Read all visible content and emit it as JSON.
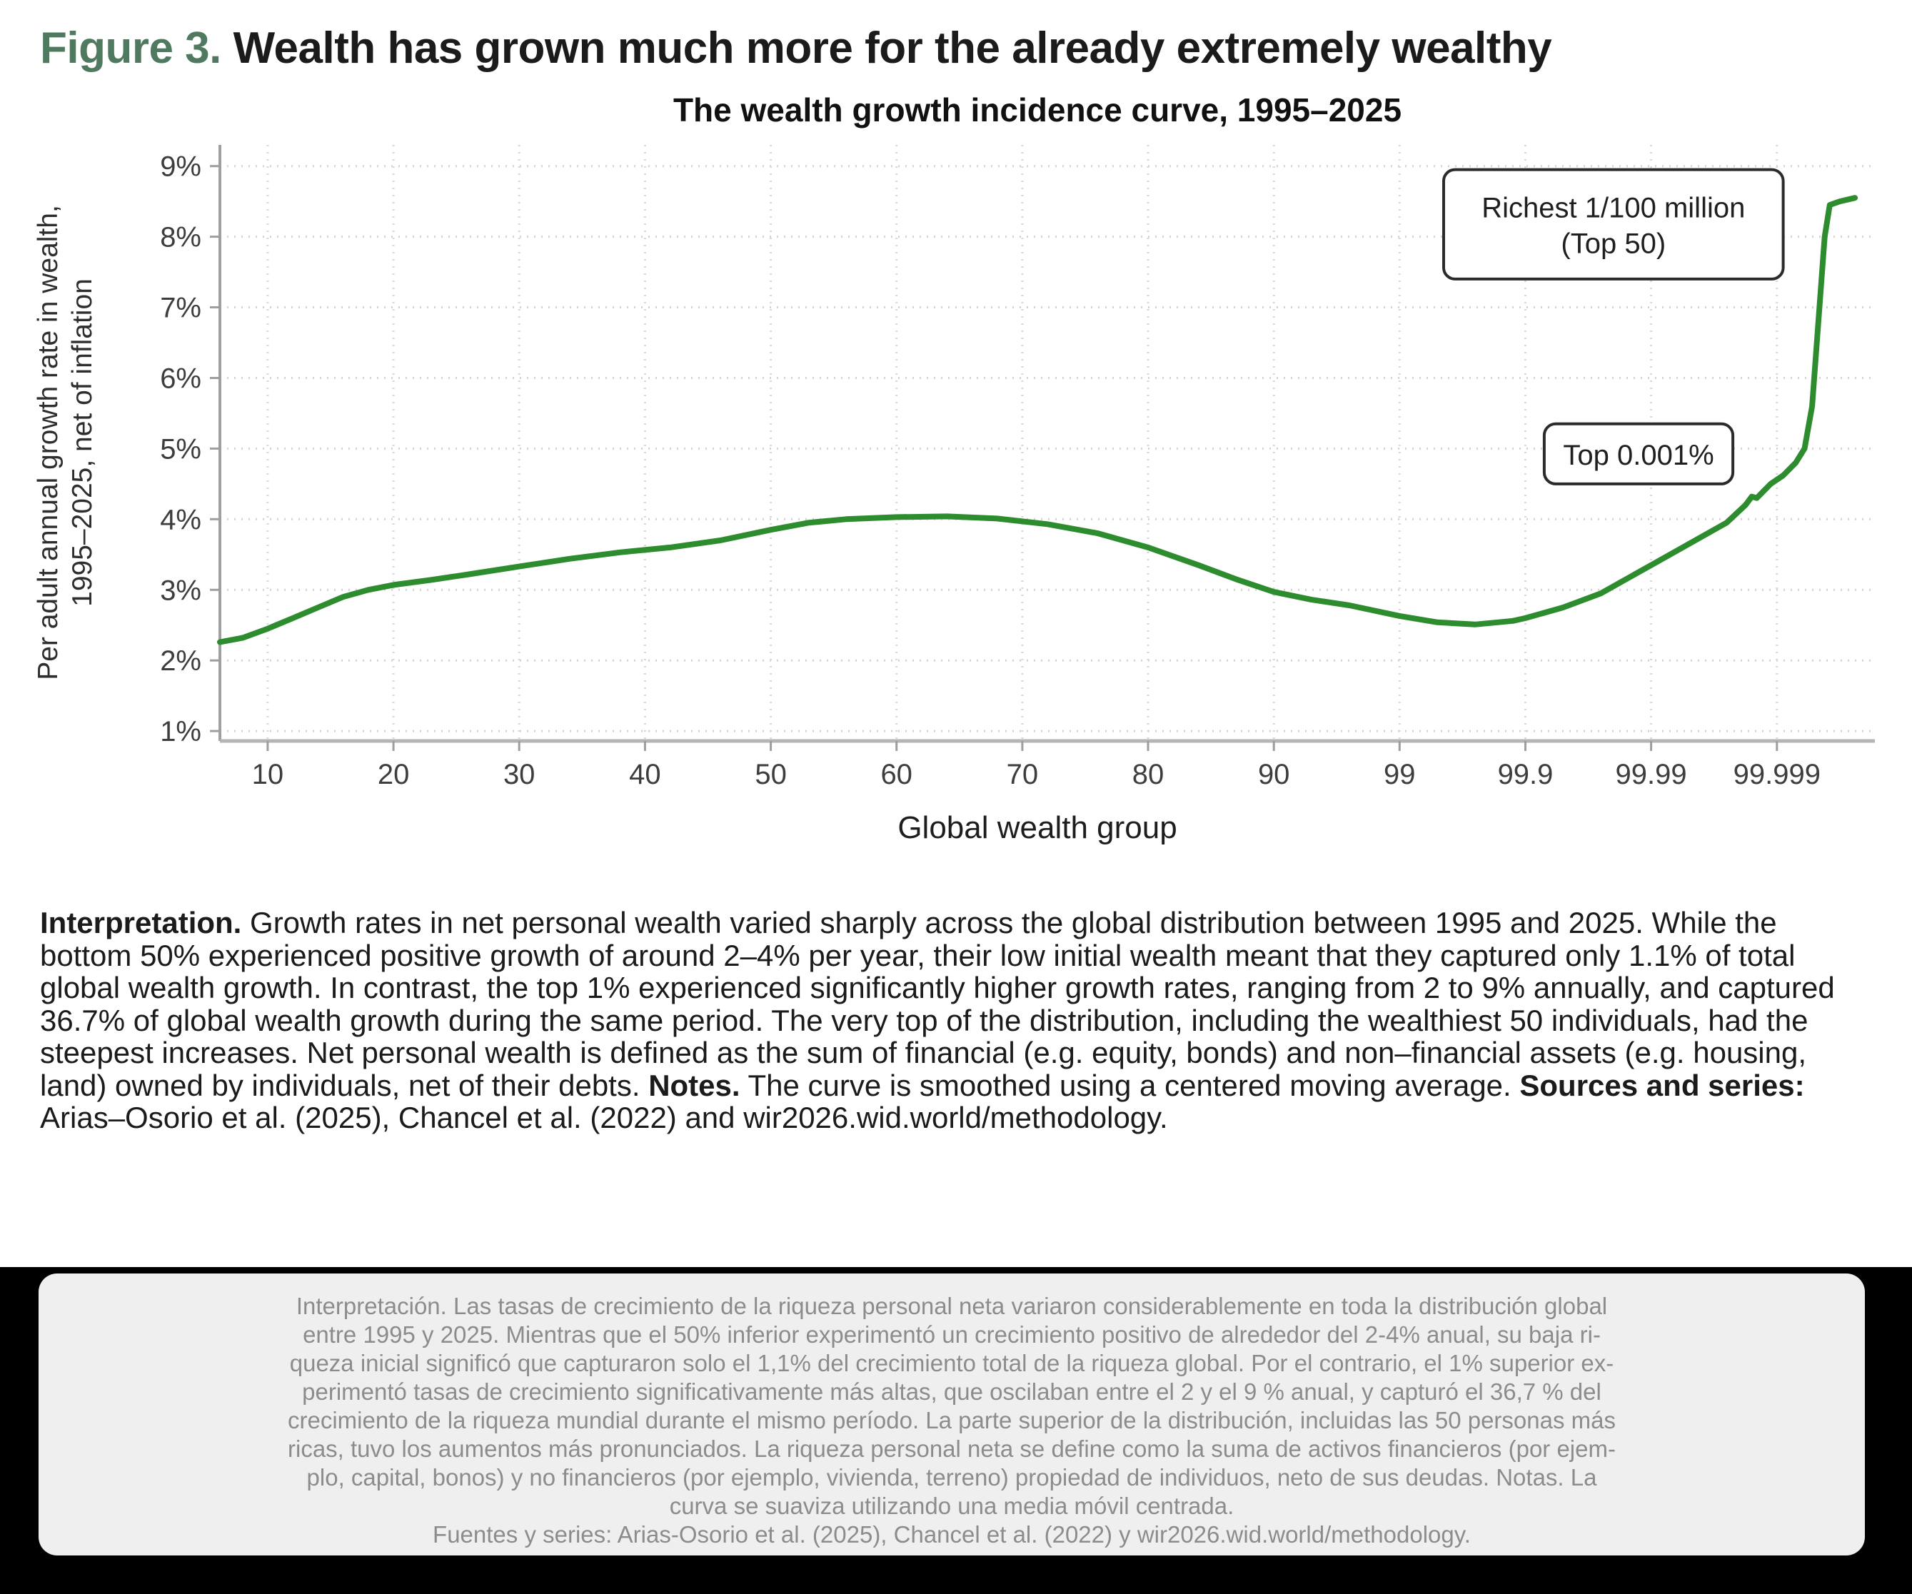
{
  "figure": {
    "label": "Figure 3.",
    "title": " Wealth has grown much more for the already extremely wealthy"
  },
  "chart_data": {
    "type": "line",
    "title": "The wealth growth incidence curve, 1995–2025",
    "xlabel": "Global wealth group",
    "ylabel_lines": [
      "Per adult annual growth rate in wealth,",
      "1995–2025, net of inflation"
    ],
    "x_scale_note": "Quantile axis: ticks equally spaced; x values below are in tick units where 1=10, 2=20 ... 9=90, 10=99, 11=99.9, 12=99.99, 13=99.999 (global wealth percentile)",
    "x_ticks": [
      {
        "label": "10",
        "t": 1
      },
      {
        "label": "20",
        "t": 2
      },
      {
        "label": "30",
        "t": 3
      },
      {
        "label": "40",
        "t": 4
      },
      {
        "label": "50",
        "t": 5
      },
      {
        "label": "60",
        "t": 6
      },
      {
        "label": "70",
        "t": 7
      },
      {
        "label": "80",
        "t": 8
      },
      {
        "label": "90",
        "t": 9
      },
      {
        "label": "99",
        "t": 10
      },
      {
        "label": "99.9",
        "t": 11
      },
      {
        "label": "99.99",
        "t": 12
      },
      {
        "label": "99.999",
        "t": 13
      }
    ],
    "y_ticks": [
      {
        "label": "9%",
        "v": 9
      },
      {
        "label": "8%",
        "v": 8
      },
      {
        "label": "7%",
        "v": 7
      },
      {
        "label": "6%",
        "v": 6
      },
      {
        "label": "5%",
        "v": 5
      },
      {
        "label": "4%",
        "v": 4
      },
      {
        "label": "3%",
        "v": 3
      },
      {
        "label": "2%",
        "v": 2
      },
      {
        "label": "1%",
        "v": 1
      }
    ],
    "ylim": [
      0.86,
      9.3
    ],
    "grid": true,
    "line_color": "#2d8c2d",
    "series": [
      {
        "name": "Wealth growth incidence curve (annual real growth %, 1995-2025)",
        "points": [
          [
            0.62,
            2.26
          ],
          [
            0.8,
            2.32
          ],
          [
            1,
            2.45
          ],
          [
            1.2,
            2.6
          ],
          [
            1.4,
            2.75
          ],
          [
            1.6,
            2.9
          ],
          [
            1.8,
            3.0
          ],
          [
            2,
            3.07
          ],
          [
            2.3,
            3.14
          ],
          [
            2.6,
            3.22
          ],
          [
            3,
            3.33
          ],
          [
            3.4,
            3.44
          ],
          [
            3.8,
            3.53
          ],
          [
            4.2,
            3.6
          ],
          [
            4.6,
            3.7
          ],
          [
            5,
            3.85
          ],
          [
            5.3,
            3.95
          ],
          [
            5.6,
            4.0
          ],
          [
            6,
            4.03
          ],
          [
            6.4,
            4.04
          ],
          [
            6.8,
            4.01
          ],
          [
            7.2,
            3.93
          ],
          [
            7.6,
            3.8
          ],
          [
            8,
            3.6
          ],
          [
            8.4,
            3.35
          ],
          [
            8.7,
            3.15
          ],
          [
            9,
            2.97
          ],
          [
            9.3,
            2.86
          ],
          [
            9.6,
            2.78
          ],
          [
            10,
            2.63
          ],
          [
            10.3,
            2.54
          ],
          [
            10.6,
            2.51
          ],
          [
            10.9,
            2.56
          ],
          [
            11,
            2.6
          ],
          [
            11.3,
            2.75
          ],
          [
            11.6,
            2.95
          ],
          [
            12,
            3.35
          ],
          [
            12.3,
            3.65
          ],
          [
            12.6,
            3.95
          ],
          [
            12.75,
            4.2
          ],
          [
            12.8,
            4.32
          ],
          [
            12.84,
            4.3
          ],
          [
            12.95,
            4.5
          ],
          [
            13.05,
            4.62
          ],
          [
            13.15,
            4.8
          ],
          [
            13.22,
            5.0
          ],
          [
            13.28,
            5.6
          ],
          [
            13.33,
            6.8
          ],
          [
            13.38,
            8.0
          ],
          [
            13.42,
            8.45
          ],
          [
            13.5,
            8.5
          ],
          [
            13.62,
            8.55
          ]
        ]
      }
    ],
    "annotations": [
      {
        "lines": [
          "Richest 1/100 million",
          "(Top 50)"
        ],
        "box": {
          "t0": 10.35,
          "t1": 13.05,
          "v0": 7.4,
          "v1": 8.95
        }
      },
      {
        "lines": [
          "Top 0.001%"
        ],
        "box": {
          "t0": 11.15,
          "t1": 12.65,
          "v0": 4.5,
          "v1": 5.35
        }
      }
    ]
  },
  "interpretation": {
    "seg1_bold": "Interpretation.",
    "seg2": " Growth rates in net personal wealth varied sharply across the global distribution between 1995 and 2025. While the bottom 50% experienced positive growth of around 2–4% per year, their low initial wealth meant that they captured only 1.1% of total global wealth growth. In contrast, the top 1% experienced significantly higher growth rates, ranging from 2 to 9% annually, and captured 36.7% of global wealth growth during the same period. The very top of the distribution, including the wealthiest 50 individuals, had the steepest increases. Net personal wealth is defined as the sum of financial (e.g. equity, bonds) and non–financial assets (e.g. housing, land) owned by individuals, net of their debts. ",
    "seg3_bold": "Notes.",
    "seg4": " The curve is smoothed using a centered moving average. ",
    "seg5_bold": "Sources and series:",
    "seg6": " Arias–Osorio et al. (2025), Chancel et al. (2022) and wir2026.wid.world/methodology."
  },
  "spanish": {
    "lines": [
      "Interpretación. Las tasas de crecimiento de la riqueza personal neta variaron considerablemente en toda la distribución global",
      "entre 1995 y 2025. Mientras que el 50% inferior experimentó un crecimiento positivo de alrededor del 2-4% anual, su baja ri-",
      "queza inicial significó que capturaron solo el 1,1% del crecimiento total de la riqueza global. Por el contrario, el 1% superior ex-",
      "perimentó tasas de crecimiento significativamente más altas, que oscilaban entre el 2 y el 9 % anual, y capturó el 36,7 % del",
      "crecimiento de la riqueza mundial durante el mismo período. La parte superior de la distribución, incluidas las 50 personas más",
      "ricas, tuvo los aumentos más pronunciados. La riqueza personal neta se define como la suma de activos financieros (por ejem-",
      "plo, capital, bonos) y no financieros (por ejemplo, vivienda, terreno) propiedad de individuos, neto de sus deudas. Notas. La",
      "curva se suaviza utilizando una media móvil centrada.",
      "Fuentes y series: Arias-Osorio et al. (2025), Chancel et al. (2022) y wir2026.wid.world/methodology."
    ]
  }
}
